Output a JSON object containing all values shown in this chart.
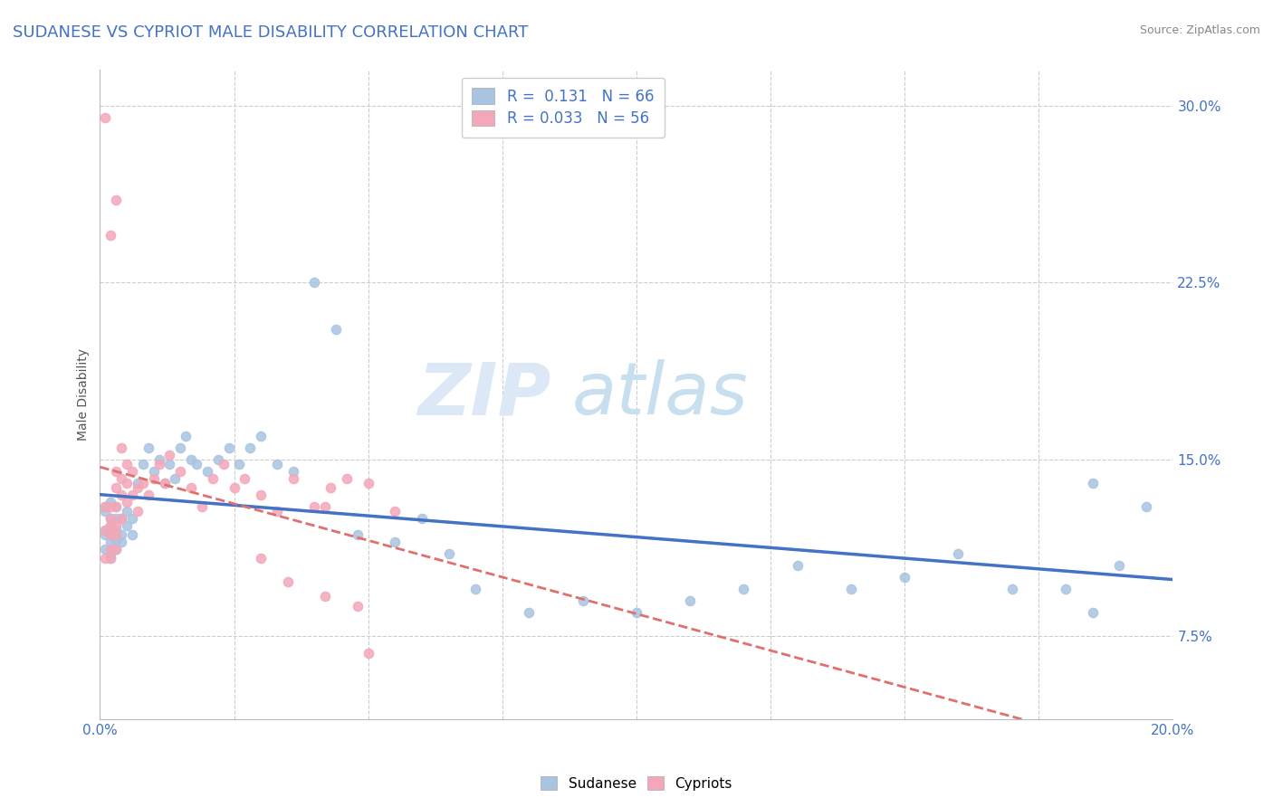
{
  "title": "SUDANESE VS CYPRIOT MALE DISABILITY CORRELATION CHART",
  "source": "Source: ZipAtlas.com",
  "ylabel": "Male Disability",
  "xlim": [
    0.0,
    0.2
  ],
  "ylim": [
    0.04,
    0.315
  ],
  "yticks": [
    0.075,
    0.15,
    0.225,
    0.3
  ],
  "ytick_labels": [
    "7.5%",
    "15.0%",
    "22.5%",
    "30.0%"
  ],
  "sudanese_color": "#a8c4e0",
  "cypriot_color": "#f4a7b9",
  "sudanese_line_color": "#4472c4",
  "cypriot_line_color": "#e07070",
  "R_sudanese": 0.131,
  "N_sudanese": 66,
  "R_cypriot": 0.033,
  "N_cypriot": 56,
  "legend_text_color": "#4472c4",
  "sudanese_x": [
    0.001,
    0.001,
    0.001,
    0.001,
    0.001,
    0.002,
    0.002,
    0.002,
    0.002,
    0.002,
    0.002,
    0.002,
    0.003,
    0.003,
    0.003,
    0.003,
    0.003,
    0.004,
    0.004,
    0.004,
    0.005,
    0.005,
    0.006,
    0.006,
    0.007,
    0.008,
    0.009,
    0.01,
    0.011,
    0.012,
    0.013,
    0.014,
    0.015,
    0.016,
    0.017,
    0.018,
    0.02,
    0.022,
    0.024,
    0.026,
    0.028,
    0.03,
    0.033,
    0.036,
    0.04,
    0.044,
    0.048,
    0.055,
    0.06,
    0.065,
    0.07,
    0.08,
    0.09,
    0.1,
    0.11,
    0.12,
    0.13,
    0.14,
    0.15,
    0.16,
    0.17,
    0.18,
    0.185,
    0.19,
    0.195,
    0.185
  ],
  "sudanese_y": [
    0.12,
    0.128,
    0.112,
    0.118,
    0.13,
    0.122,
    0.115,
    0.125,
    0.11,
    0.132,
    0.108,
    0.118,
    0.125,
    0.115,
    0.12,
    0.13,
    0.112,
    0.125,
    0.118,
    0.115,
    0.122,
    0.128,
    0.118,
    0.125,
    0.14,
    0.148,
    0.155,
    0.145,
    0.15,
    0.14,
    0.148,
    0.142,
    0.155,
    0.16,
    0.15,
    0.148,
    0.145,
    0.15,
    0.155,
    0.148,
    0.155,
    0.16,
    0.148,
    0.145,
    0.225,
    0.205,
    0.118,
    0.115,
    0.125,
    0.11,
    0.095,
    0.085,
    0.09,
    0.085,
    0.09,
    0.095,
    0.105,
    0.095,
    0.1,
    0.11,
    0.095,
    0.095,
    0.14,
    0.105,
    0.13,
    0.085
  ],
  "cypriot_x": [
    0.001,
    0.001,
    0.001,
    0.001,
    0.002,
    0.002,
    0.002,
    0.002,
    0.002,
    0.002,
    0.002,
    0.003,
    0.003,
    0.003,
    0.003,
    0.003,
    0.003,
    0.003,
    0.004,
    0.004,
    0.004,
    0.004,
    0.005,
    0.005,
    0.005,
    0.006,
    0.006,
    0.007,
    0.007,
    0.008,
    0.009,
    0.01,
    0.011,
    0.012,
    0.013,
    0.015,
    0.017,
    0.019,
    0.021,
    0.023,
    0.025,
    0.027,
    0.03,
    0.033,
    0.036,
    0.04,
    0.043,
    0.046,
    0.05,
    0.055,
    0.03,
    0.035,
    0.042,
    0.048,
    0.05,
    0.042
  ],
  "cypriot_y": [
    0.295,
    0.13,
    0.12,
    0.108,
    0.245,
    0.125,
    0.118,
    0.13,
    0.112,
    0.122,
    0.108,
    0.26,
    0.145,
    0.138,
    0.13,
    0.122,
    0.112,
    0.118,
    0.155,
    0.142,
    0.135,
    0.125,
    0.148,
    0.14,
    0.132,
    0.145,
    0.135,
    0.138,
    0.128,
    0.14,
    0.135,
    0.142,
    0.148,
    0.14,
    0.152,
    0.145,
    0.138,
    0.13,
    0.142,
    0.148,
    0.138,
    0.142,
    0.135,
    0.128,
    0.142,
    0.13,
    0.138,
    0.142,
    0.068,
    0.128,
    0.108,
    0.098,
    0.092,
    0.088,
    0.14,
    0.13
  ]
}
